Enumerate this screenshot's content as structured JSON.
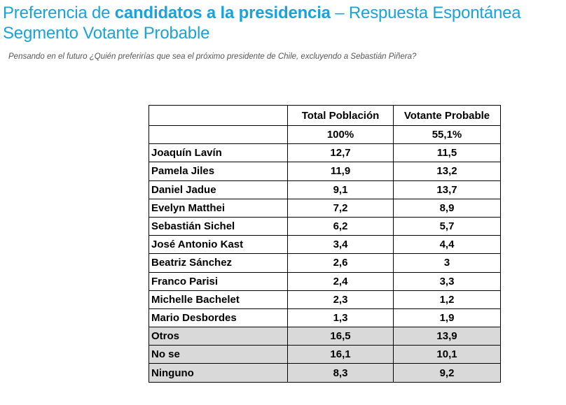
{
  "title": {
    "part1": "Preferencia de ",
    "part2_bold": "candidatos a la presidencia",
    "part3": " – Respuesta Espontánea",
    "line2": "Segmento Votante Probable"
  },
  "subtitle": "Pensando en el futuro ¿Quién preferirías que sea el próximo presidente de Chile, excluyendo a Sebastián Piñera?",
  "colors": {
    "title": "#1aa3d9",
    "grey_row": "#d9d9d9"
  },
  "table": {
    "columns": [
      "",
      "Total Población",
      "Votante Probable"
    ],
    "base": [
      "",
      "100%",
      "55,1%"
    ],
    "rows": [
      {
        "name": "Joaquín Lavín",
        "total": "12,7",
        "probable": "11,5"
      },
      {
        "name": "Pamela Jiles",
        "total": "11,9",
        "probable": "13,2"
      },
      {
        "name": "Daniel Jadue",
        "total": "9,1",
        "probable": "13,7"
      },
      {
        "name": "Evelyn Matthei",
        "total": "7,2",
        "probable": "8,9"
      },
      {
        "name": "Sebastián Sichel",
        "total": "6,2",
        "probable": "5,7"
      },
      {
        "name": "José Antonio Kast",
        "total": "3,4",
        "probable": "4,4"
      },
      {
        "name": "Beatriz Sánchez",
        "total": "2,6",
        "probable": "3"
      },
      {
        "name": "Franco Parisi",
        "total": "2,4",
        "probable": "3,3"
      },
      {
        "name": "Michelle Bachelet",
        "total": "2,3",
        "probable": "1,2"
      },
      {
        "name": "Mario Desbordes",
        "total": "1,3",
        "probable": "1,9"
      },
      {
        "name": "Otros",
        "total": "16,5",
        "probable": "13,9"
      },
      {
        "name": "No se",
        "total": "16,1",
        "probable": "10,1"
      },
      {
        "name": "Ninguno",
        "total": "8,3",
        "probable": "9,2"
      }
    ]
  }
}
